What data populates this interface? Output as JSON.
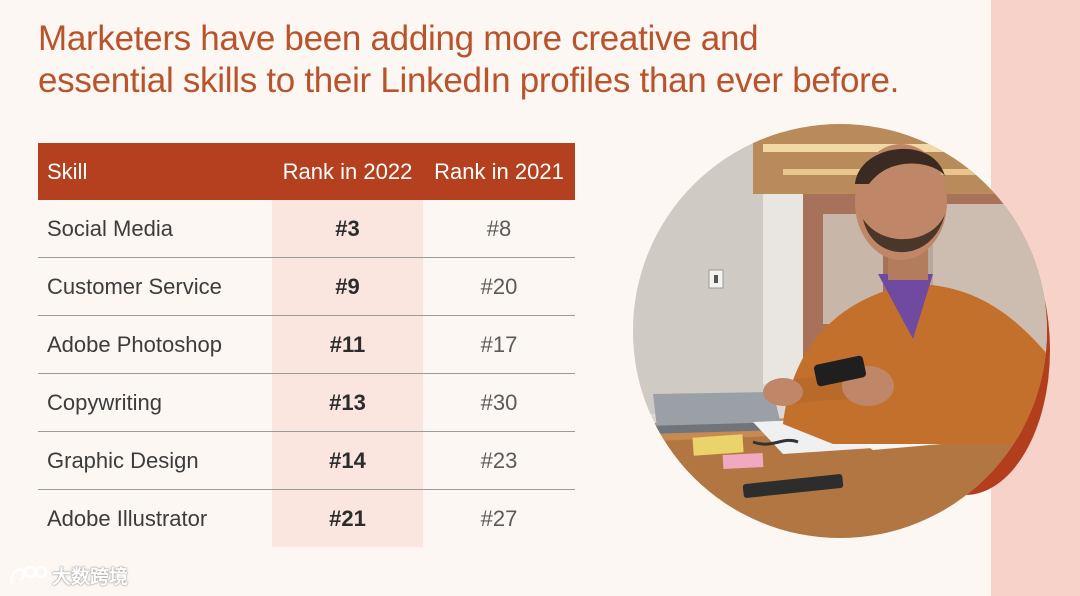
{
  "headline": {
    "line1": "Marketers have been adding more creative and",
    "line2": "essential skills to their LinkedIn profiles than ever before."
  },
  "table": {
    "headers": {
      "skill": "Skill",
      "rank_2022": "Rank in 2022",
      "rank_2021": "Rank in 2021"
    },
    "rows": [
      {
        "skill": "Social Media",
        "rank_2022": "#3",
        "rank_2021": "#8"
      },
      {
        "skill": "Customer Service",
        "rank_2022": "#9",
        "rank_2021": "#20"
      },
      {
        "skill": "Adobe Photoshop",
        "rank_2022": "#11",
        "rank_2021": "#17"
      },
      {
        "skill": "Copywriting",
        "rank_2022": "#13",
        "rank_2021": "#30"
      },
      {
        "skill": "Graphic Design",
        "rank_2022": "#14",
        "rank_2021": "#23"
      },
      {
        "skill": "Adobe Illustrator",
        "rank_2022": "#21",
        "rank_2021": "#27"
      }
    ]
  },
  "watermark": {
    "text": "大数跨境"
  },
  "colors": {
    "headline": "#b9532b",
    "header_bg": "#b4401f",
    "highlight_col": "#fbe6df",
    "background": "#fcf7f3",
    "side_band": "#f6d2c9",
    "accent_circle": "#b33e1e"
  }
}
